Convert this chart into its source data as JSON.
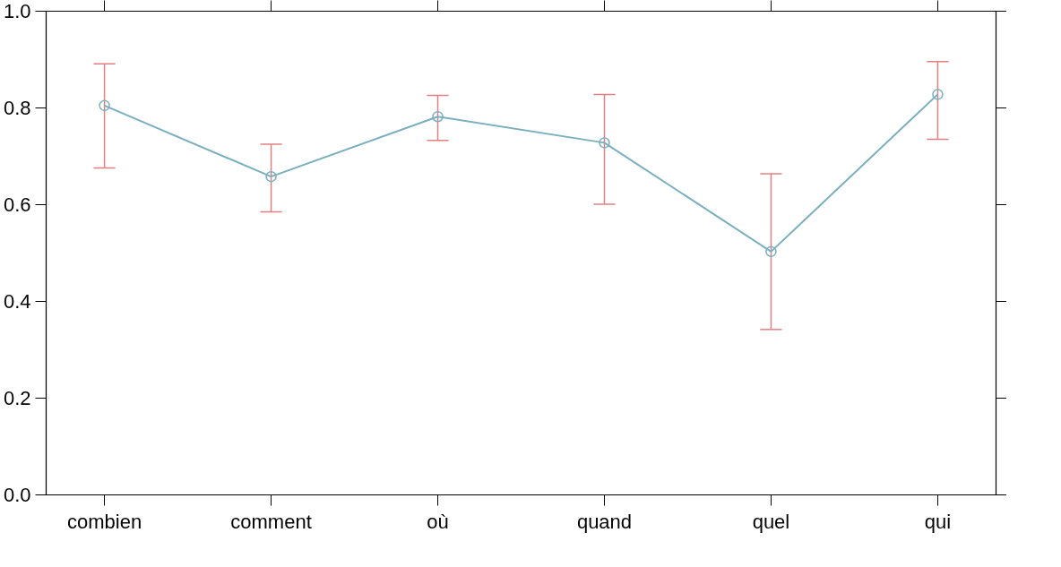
{
  "chart_data": {
    "type": "line",
    "categories": [
      "combien",
      "comment",
      "où",
      "quand",
      "quel",
      "qui"
    ],
    "series": [
      {
        "color": "#7aafbf",
        "values": [
          0.805,
          0.658,
          0.782,
          0.728,
          0.503,
          0.828
        ],
        "errors": [
          [
            0.676,
            0.891
          ],
          [
            0.585,
            0.725
          ],
          [
            0.733,
            0.826
          ],
          [
            0.601,
            0.828
          ],
          [
            0.342,
            0.664
          ],
          [
            0.735,
            0.896
          ]
        ]
      }
    ],
    "ylim": [
      0,
      1
    ],
    "yticks": [
      {
        "value": 0,
        "label": "0.0"
      },
      0.2,
      0.4,
      0.6,
      0.8,
      {
        "value": 1,
        "label": "1.0"
      }
    ],
    "marker": "circle",
    "line_style": "solid",
    "grid": false
  }
}
